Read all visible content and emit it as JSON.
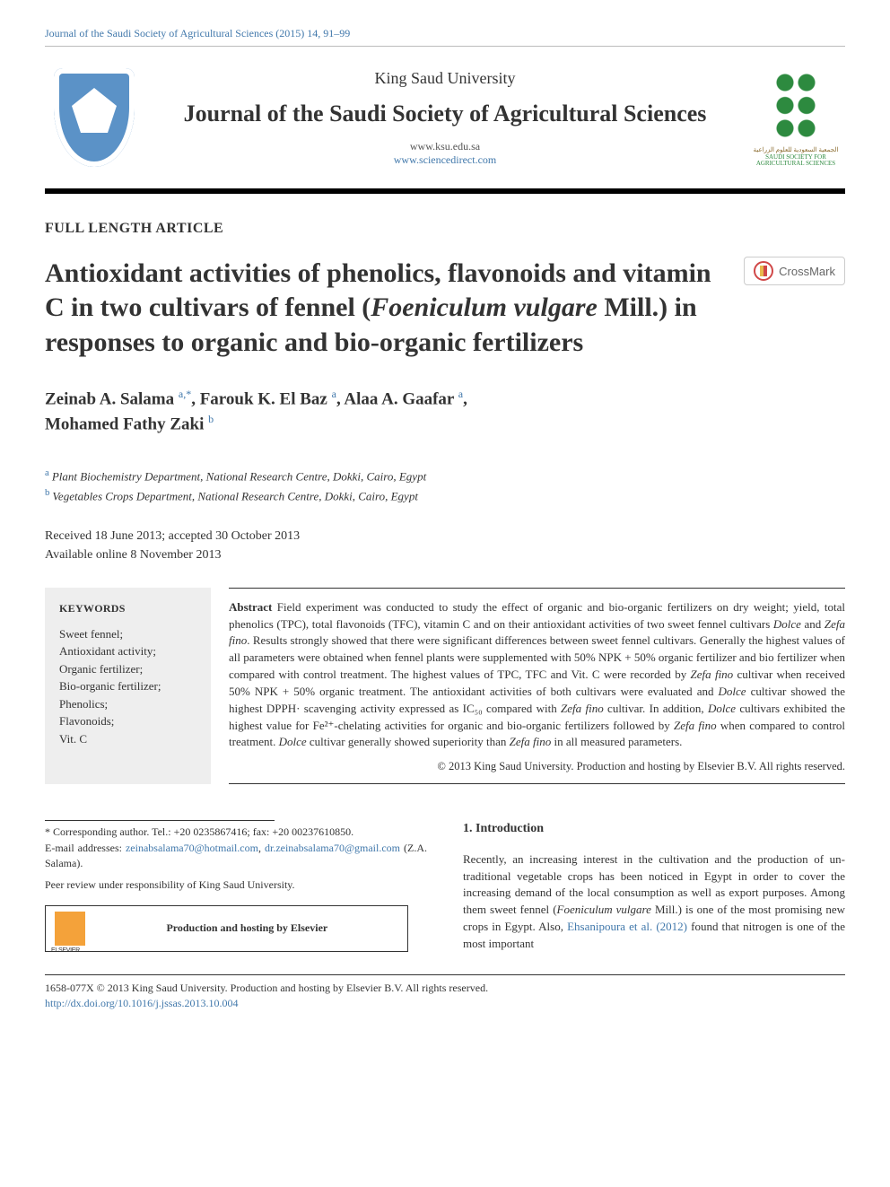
{
  "running_head": "Journal of the Saudi Society of Agricultural Sciences (2015) 14, 91–99",
  "masthead": {
    "institution": "King Saud University",
    "journal": "Journal of the Saudi Society of Agricultural Sciences",
    "site1": "www.ksu.edu.sa",
    "site2": "www.sciencedirect.com",
    "society_ar": "الجمعية السعودية للعلوم الزراعية",
    "society_en": "SAUDI SOCIETY FOR AGRICULTURAL SCIENCES"
  },
  "article_type": "FULL LENGTH ARTICLE",
  "title_pre": "Antioxidant activities of phenolics, flavonoids and vitamin C in two cultivars of fennel (",
  "title_species": "Foeniculum vulgare",
  "title_post": " Mill.) in responses to organic and bio-organic fertilizers",
  "crossmark_label": "CrossMark",
  "authors": {
    "a1_name": "Zeinab A. Salama ",
    "a1_aff": "a,",
    "a1_star": "*",
    "sep1": ", ",
    "a2_name": "Farouk K. El Baz ",
    "a2_aff": "a",
    "sep2": ", ",
    "a3_name": "Alaa A. Gaafar ",
    "a3_aff": "a",
    "sep3": ", ",
    "a4_name": "Mohamed Fathy Zaki ",
    "a4_aff": "b"
  },
  "affiliations": {
    "a": "Plant Biochemistry Department, National Research Centre, Dokki, Cairo, Egypt",
    "b": "Vegetables Crops Department, National Research Centre, Dokki, Cairo, Egypt"
  },
  "history": {
    "l1": "Received 18 June 2013; accepted 30 October 2013",
    "l2": "Available online 8 November 2013"
  },
  "keywords": {
    "head": "KEYWORDS",
    "items": "Sweet fennel;\nAntioxidant activity;\nOrganic fertilizer;\nBio-organic fertilizer;\nPhenolics;\nFlavonoids;\nVit. C"
  },
  "abstract": {
    "lead": "Abstract",
    "p1a": "   Field experiment was conducted to study the effect of organic and bio-organic fertilizers on dry weight; yield, total phenolics (TPC), total flavonoids (TFC), vitamin C and on their antioxidant activities of two sweet fennel cultivars ",
    "sp1": "Dolce",
    "p1b": " and ",
    "sp2": "Zefa fino",
    "p1c": ". Results strongly showed that there were significant differences between sweet fennel cultivars. Generally the highest values of all parameters were obtained when fennel plants were supplemented with 50% NPK + 50% organic fertilizer and bio fertilizer when compared with control treatment. The highest values of TPC, TFC and Vit. C were recorded by ",
    "sp3": "Zefa fino",
    "p1d": " cultivar when received 50% NPK + 50% organic treatment. The antioxidant activities of both cultivars were evaluated and ",
    "sp4": "Dolce",
    "p1e": " cultivar showed the highest DPPH· scavenging activity expressed as IC₅₀ compared with ",
    "sp5": "Zefa fino",
    "p1f": " cultivar. In addition, ",
    "sp6": "Dolce",
    "p1g": " cultivars exhibited the highest value for Fe²⁺-chelating activities for organic and bio-organic fertilizers followed by ",
    "sp7": "Zefa fino",
    "p1h": " when compared to control treatment. ",
    "sp8": "Dolce",
    "p1i": " cultivar generally showed superiority than ",
    "sp9": "Zefa fino",
    "p1j": " in all measured parameters.",
    "copyright": "© 2013 King Saud University. Production and hosting by Elsevier B.V. All rights reserved."
  },
  "corresponding": {
    "line1": "* Corresponding author. Tel.: +20 0235867416; fax: +20 00237610850.",
    "line2a": "E-mail addresses: ",
    "mail1": "zeinabsalama70@hotmail.com",
    "sep": ", ",
    "mail2": "dr.zeinabsalama70@gmail.com",
    "line2b": " (Z.A. Salama).",
    "peer": "Peer review under responsibility of King Saud University.",
    "elsevier": "Production and hosting by Elsevier"
  },
  "introduction": {
    "head": "1. Introduction",
    "p1a": "Recently, an increasing interest in the cultivation and the production of un-traditional vegetable crops has been noticed in Egypt in order to cover the increasing demand of the local consumption as well as export purposes. Among them sweet fennel (",
    "sp1": "Foeniculum vulgare",
    "p1b": " Mill.) is one of the most promising new crops in Egypt. Also, ",
    "cite": "Ehsanipoura et al. (2012)",
    "p1c": " found that nitrogen is one of the most important"
  },
  "footer": {
    "l1": "1658-077X © 2013 King Saud University. Production and hosting by Elsevier B.V. All rights reserved.",
    "doi": "http://dx.doi.org/10.1016/j.jssas.2013.10.004"
  },
  "colors": {
    "link": "#4178ab",
    "text": "#333333",
    "kw_bg": "#eeeeee",
    "black": "#000000",
    "logo_blue": "#5b92c7",
    "logo_green": "#2d8a3f"
  }
}
